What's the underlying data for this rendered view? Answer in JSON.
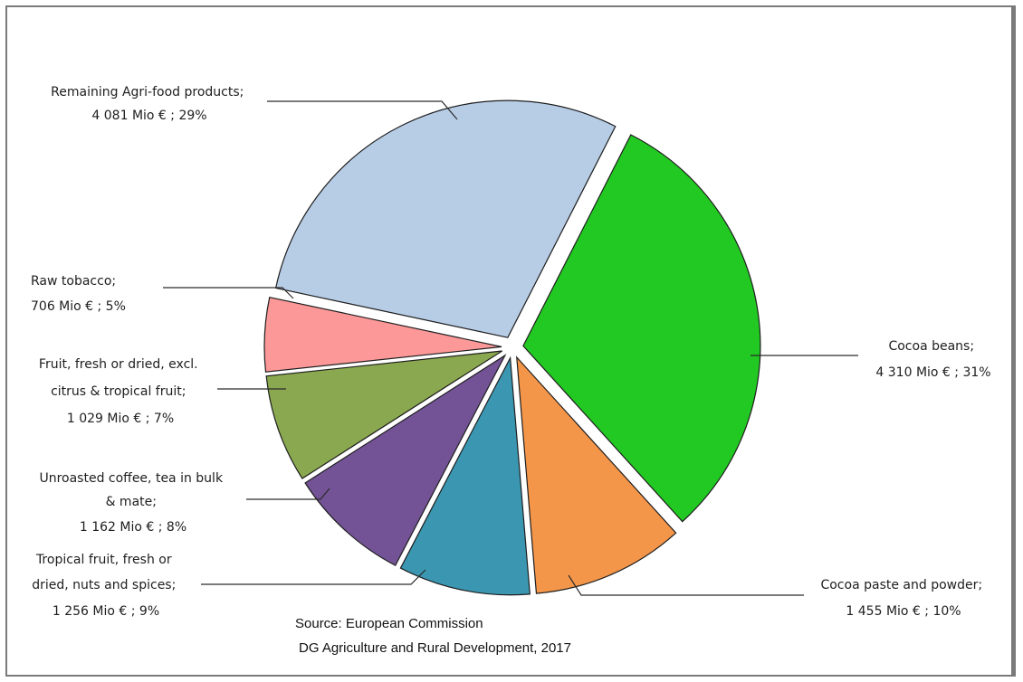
{
  "chart_data": {
    "type": "pie",
    "title": "",
    "slices": [
      {
        "label": "Cocoa beans",
        "value_text": "4 310 Mio € ; 31%",
        "value": 4310,
        "percent": 31,
        "color": "#22c922",
        "exploded": true
      },
      {
        "label": "Cocoa paste and powder",
        "value_text": "1 455 Mio € ; 10%",
        "value": 1455,
        "percent": 10,
        "color": "#f4964a",
        "exploded": true
      },
      {
        "label": "Tropical fruit, fresh or dried, nuts and spices",
        "value_text": "1 256 Mio € ; 9%",
        "value": 1256,
        "percent": 9,
        "color": "#3b97b1",
        "exploded": true
      },
      {
        "label": "Unroasted coffee, tea in bulk & mate",
        "value_text": "1 162 Mio € ; 8%",
        "value": 1162,
        "percent": 8,
        "color": "#735396",
        "exploded": true
      },
      {
        "label": "Fruit, fresh or dried, excl. citrus & tropical fruit",
        "value_text": "1 029 Mio € ; 7%",
        "value": 1029,
        "percent": 7,
        "color": "#8aa84f",
        "exploded": true
      },
      {
        "label": "Raw tobacco",
        "value_text": "706 Mio € ; 5%",
        "value": 706,
        "percent": 5,
        "color": "#fc9898",
        "exploded": true
      },
      {
        "label": "Remaining Agri-food products",
        "value_text": "4 081 Mio € ; 29%",
        "value": 4081,
        "percent": 29,
        "color": "#b7cde6",
        "exploded": true
      }
    ]
  },
  "labels": {
    "cocoa_beans": [
      "Cocoa beans;",
      "4 310 Mio € ; 31%"
    ],
    "cocoa_paste": [
      "Cocoa paste and powder;",
      "1 455 Mio € ; 10%"
    ],
    "tropical": [
      "Tropical fruit, fresh or",
      "dried, nuts and spices;",
      "1 256 Mio € ; 9%"
    ],
    "coffee": [
      "Unroasted coffee, tea in bulk",
      "& mate;",
      "1 162 Mio € ; 8%"
    ],
    "fruit": [
      "Fruit, fresh or dried, excl.",
      "citrus & tropical fruit;",
      "1 029 Mio € ; 7%"
    ],
    "tobacco": [
      "Raw tobacco;",
      "706 Mio € ; 5%"
    ],
    "remaining": [
      "Remaining Agri-food products;",
      "4 081 Mio € ; 29%"
    ]
  },
  "source": {
    "line1": "Source: European Commission",
    "line2": "DG Agriculture and Rural Development, 2017"
  }
}
